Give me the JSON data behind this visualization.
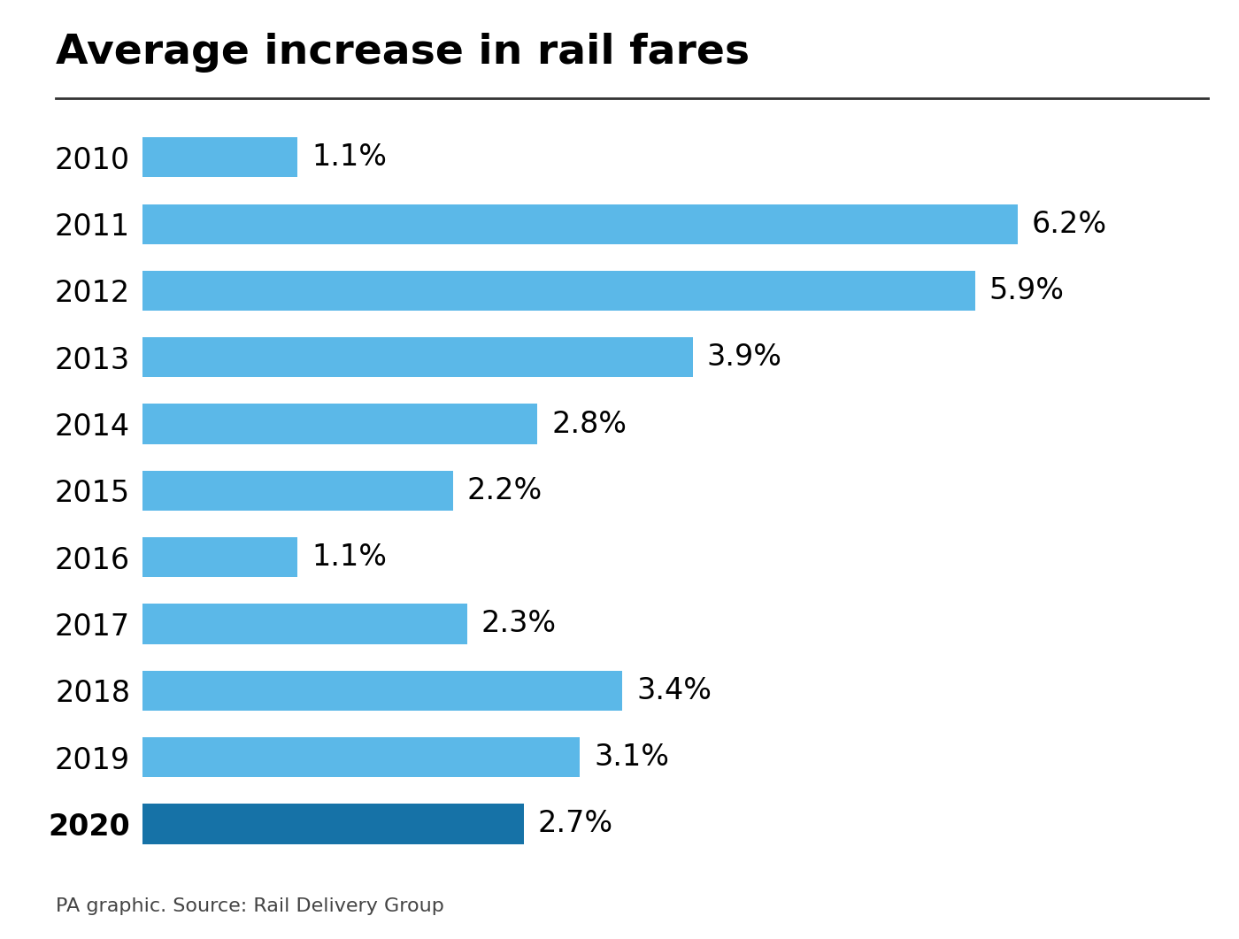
{
  "title": "Average increase in rail fares",
  "years": [
    "2010",
    "2011",
    "2012",
    "2013",
    "2014",
    "2015",
    "2016",
    "2017",
    "2018",
    "2019",
    "2020"
  ],
  "values": [
    1.1,
    6.2,
    5.9,
    3.9,
    2.8,
    2.2,
    1.1,
    2.3,
    3.4,
    3.1,
    2.7
  ],
  "labels": [
    "1.1%",
    "6.2%",
    "5.9%",
    "3.9%",
    "2.8%",
    "2.2%",
    "1.1%",
    "2.3%",
    "3.4%",
    "3.1%",
    "2.7%"
  ],
  "bar_colors": [
    "#5bb8e8",
    "#5bb8e8",
    "#5bb8e8",
    "#5bb8e8",
    "#5bb8e8",
    "#5bb8e8",
    "#5bb8e8",
    "#5bb8e8",
    "#5bb8e8",
    "#5bb8e8",
    "#1672a7"
  ],
  "year_bold": [
    false,
    false,
    false,
    false,
    false,
    false,
    false,
    false,
    false,
    false,
    true
  ],
  "background_color": "#ffffff",
  "title_fontsize": 34,
  "bar_label_fontsize": 24,
  "year_label_fontsize": 24,
  "source_text": "PA graphic. Source: Rail Delivery Group",
  "xlim": [
    0,
    7.2
  ],
  "title_line_color": "#333333",
  "source_fontsize": 16
}
